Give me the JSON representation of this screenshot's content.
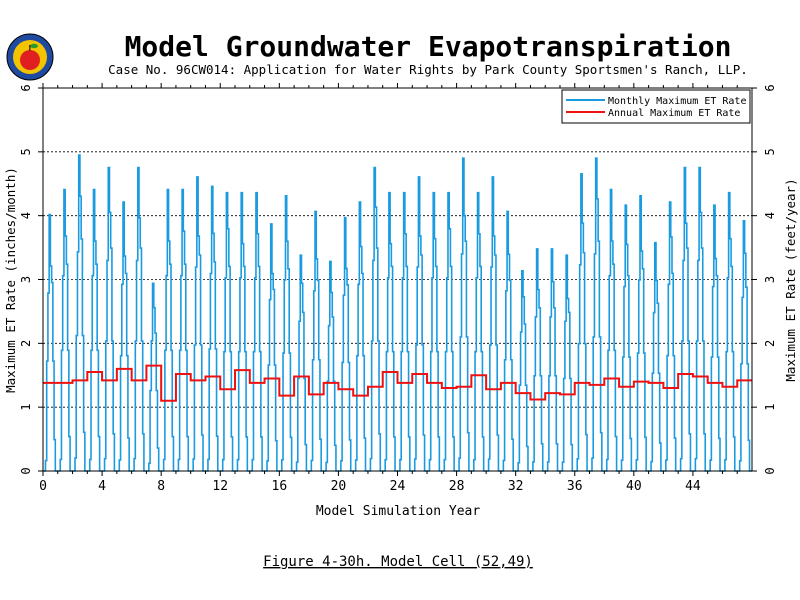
{
  "title": "Model Groundwater Evapotranspiration",
  "subtitle": "Case No. 96CW014: Application for Water Rights by Park County Sportsmen's Ranch, LLP.",
  "caption": "Figure 4-30h.  Model Cell (52,49)",
  "colors": {
    "monthly": "#1a9be0",
    "annual": "#ee1111",
    "axis": "#000000",
    "logo_outer": "#1e4aa0",
    "logo_inner": "#f2c400",
    "logo_apple": "#e02020",
    "logo_leaf": "#2a9a2a"
  },
  "logo": {
    "icon": "apple-seal-icon"
  },
  "chart_data": {
    "type": "line",
    "xlabel": "Model Simulation Year",
    "ylabel_left": "Maximum ET Rate (inches/month)",
    "ylabel_right": "Maximum ET Rate (feet/year)",
    "xlim": [
      0,
      48
    ],
    "ylim_left": [
      0,
      6
    ],
    "ylim_right": [
      0,
      6
    ],
    "x_ticks": [
      "0",
      "4",
      "8",
      "12",
      "16",
      "20",
      "24",
      "28",
      "32",
      "36",
      "40",
      "44"
    ],
    "y_ticks_left": [
      "0",
      "1",
      "2",
      "3",
      "4",
      "5",
      "6"
    ],
    "y_ticks_right": [
      "0",
      "1",
      "2",
      "3",
      "4",
      "5",
      "6"
    ],
    "grid": "horizontal dashed at 1-5",
    "legend_position": "top-right",
    "series": [
      {
        "name": "Monthly Maximum ET Rate",
        "kind": "monthly",
        "annual_peaks": [
          4.1,
          4.5,
          5.05,
          4.5,
          4.85,
          4.3,
          4.85,
          3.0,
          4.5,
          4.5,
          4.7,
          4.55,
          4.45,
          4.45,
          4.45,
          3.95,
          4.4,
          3.45,
          4.15,
          3.35,
          4.05,
          4.3,
          4.85,
          4.45,
          4.45,
          4.7,
          4.45,
          4.45,
          5.0,
          4.45,
          4.7,
          4.15,
          3.2,
          3.55,
          3.55,
          3.45,
          4.75,
          5.0,
          4.5,
          4.25,
          4.4,
          3.65,
          4.3,
          4.85,
          4.85,
          4.25,
          4.45,
          4.0
        ],
        "monthly_profile": [
          0,
          0,
          0.04,
          0.42,
          0.68,
          0.98,
          0.87,
          0.72,
          0.42,
          0.12,
          0,
          0
        ]
      },
      {
        "name": "Annual Maximum ET Rate",
        "kind": "step",
        "values": [
          1.38,
          1.38,
          1.42,
          1.55,
          1.42,
          1.6,
          1.42,
          1.65,
          1.1,
          1.52,
          1.42,
          1.48,
          1.28,
          1.58,
          1.38,
          1.45,
          1.18,
          1.48,
          1.2,
          1.38,
          1.28,
          1.18,
          1.32,
          1.55,
          1.38,
          1.52,
          1.38,
          1.3,
          1.32,
          1.5,
          1.28,
          1.38,
          1.22,
          1.12,
          1.22,
          1.2,
          1.38,
          1.35,
          1.45,
          1.32,
          1.4,
          1.38,
          1.3,
          1.52,
          1.48,
          1.38,
          1.32,
          1.42
        ]
      }
    ]
  }
}
